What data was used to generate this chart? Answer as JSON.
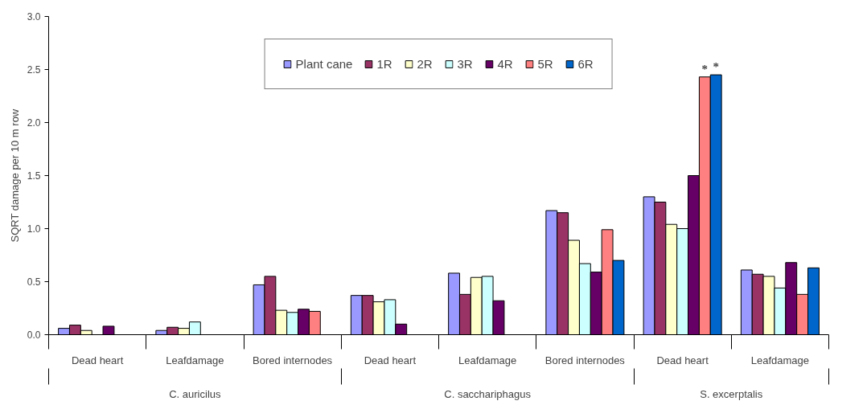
{
  "chart_data": {
    "type": "bar",
    "ylabel": "SQRT damage per 10 m row",
    "categories": [
      "Dead heart",
      "Leafdamage",
      "Bored internodes",
      "Dead heart",
      "Leafdamage",
      "Bored internodes",
      "Dead heart",
      "Leafdamage"
    ],
    "annotations": [
      "C. auricilus",
      "C. sacchariphagus",
      "S. excerptalis"
    ],
    "series": [
      {
        "name": "Plant cane",
        "color": "#9999ff",
        "values": [
          0.06,
          0.04,
          0.47,
          0.37,
          0.58,
          1.17,
          1.3,
          0.61
        ]
      },
      {
        "name": "1R",
        "color": "#993366",
        "values": [
          0.09,
          0.07,
          0.55,
          0.37,
          0.38,
          1.15,
          1.25,
          0.57
        ]
      },
      {
        "name": "2R",
        "color": "#ffffcc",
        "values": [
          0.04,
          0.06,
          0.23,
          0.31,
          0.54,
          0.89,
          1.04,
          0.55
        ]
      },
      {
        "name": "3R",
        "color": "#ccffff",
        "values": [
          null,
          0.12,
          0.21,
          0.33,
          0.55,
          0.67,
          1.0,
          0.44
        ]
      },
      {
        "name": "4R",
        "color": "#660066",
        "values": [
          0.08,
          null,
          0.24,
          0.1,
          0.32,
          0.59,
          1.5,
          0.68
        ]
      },
      {
        "name": "5R",
        "color": "#ff8080",
        "values": [
          null,
          null,
          0.22,
          null,
          null,
          0.99,
          2.43,
          0.38
        ],
        "value_labels": [
          null,
          null,
          null,
          null,
          null,
          null,
          "*",
          null
        ]
      },
      {
        "name": "6R",
        "color": "#0066cc",
        "values": [
          null,
          null,
          null,
          null,
          null,
          0.7,
          2.45,
          0.63
        ],
        "value_labels": [
          null,
          null,
          null,
          null,
          null,
          null,
          "*",
          null
        ]
      }
    ],
    "ylim": [
      0,
      3.0
    ],
    "yticks": [
      {
        "value": 0,
        "label": "0.0"
      },
      {
        "value": 0.5,
        "label": "0.5"
      },
      {
        "value": 1.0,
        "label": "1.0"
      },
      {
        "value": 1.5,
        "label": "1.5"
      },
      {
        "value": 2.0,
        "label": "2.0"
      },
      {
        "value": 2.5,
        "label": "2.5"
      },
      {
        "value": 3.0,
        "label": "3.0"
      }
    ],
    "grid": false,
    "legend": "top"
  }
}
